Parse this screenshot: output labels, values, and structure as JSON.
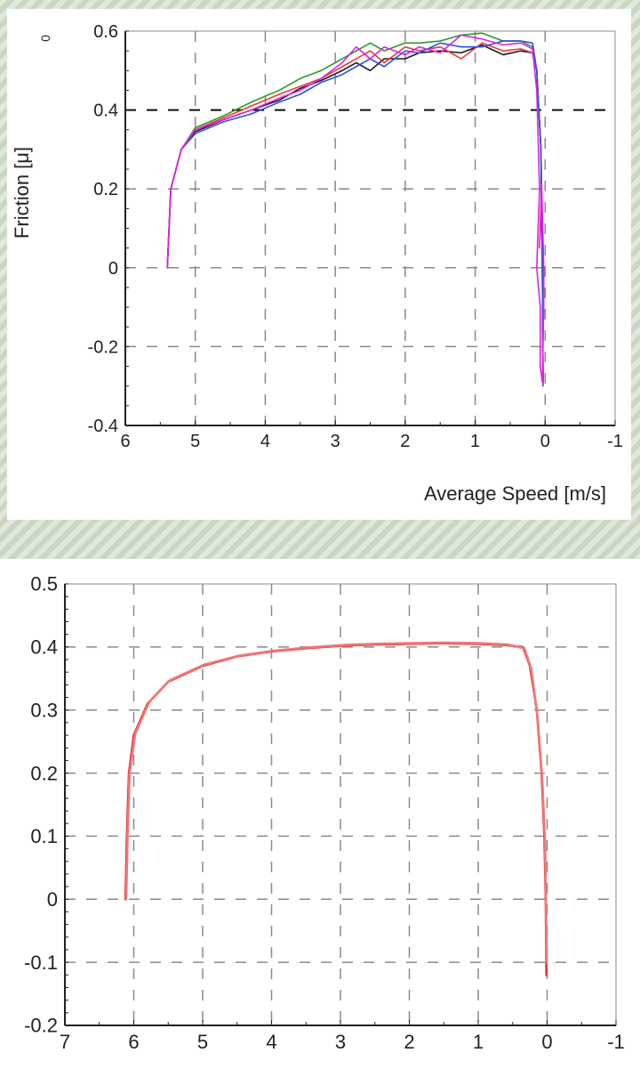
{
  "chart_data": [
    {
      "type": "line",
      "title": "",
      "xlabel": "Average Speed [m/s]",
      "ylabel": "Friction [μ]",
      "corner_label": "0",
      "xlim": [
        6,
        -1
      ],
      "ylim": [
        -0.4,
        0.6
      ],
      "x_ticks": [
        "6",
        "5",
        "4",
        "3",
        "2",
        "1",
        "0",
        "-1"
      ],
      "y_ticks": [
        "0.6",
        "0.4",
        "0.2",
        "0",
        "-0.2",
        "-0.4"
      ],
      "grid": true,
      "series": [
        {
          "color": "#1a1a1a",
          "points": [
            [
              5.4,
              0.0
            ],
            [
              5.35,
              0.2
            ],
            [
              5.2,
              0.3
            ],
            [
              5.0,
              0.345
            ],
            [
              4.6,
              0.375
            ],
            [
              4.2,
              0.4
            ],
            [
              3.8,
              0.425
            ],
            [
              3.5,
              0.455
            ],
            [
              3.2,
              0.475
            ],
            [
              2.9,
              0.5
            ],
            [
              2.7,
              0.52
            ],
            [
              2.5,
              0.5
            ],
            [
              2.3,
              0.53
            ],
            [
              2.0,
              0.53
            ],
            [
              1.8,
              0.545
            ],
            [
              1.5,
              0.55
            ],
            [
              1.2,
              0.545
            ],
            [
              0.9,
              0.565
            ],
            [
              0.6,
              0.54
            ],
            [
              0.35,
              0.55
            ],
            [
              0.18,
              0.545
            ],
            [
              0.12,
              0.5
            ],
            [
              0.06,
              0.3
            ],
            [
              0.04,
              0.0
            ],
            [
              0.03,
              -0.28
            ]
          ]
        },
        {
          "color": "#2a9a2a",
          "points": [
            [
              5.4,
              0.0
            ],
            [
              5.35,
              0.2
            ],
            [
              5.2,
              0.3
            ],
            [
              5.0,
              0.355
            ],
            [
              4.6,
              0.385
            ],
            [
              4.2,
              0.42
            ],
            [
              3.8,
              0.45
            ],
            [
              3.5,
              0.48
            ],
            [
              3.2,
              0.5
            ],
            [
              2.9,
              0.53
            ],
            [
              2.7,
              0.55
            ],
            [
              2.5,
              0.57
            ],
            [
              2.3,
              0.55
            ],
            [
              2.0,
              0.57
            ],
            [
              1.8,
              0.57
            ],
            [
              1.5,
              0.575
            ],
            [
              1.2,
              0.59
            ],
            [
              0.9,
              0.595
            ],
            [
              0.6,
              0.575
            ],
            [
              0.35,
              0.575
            ],
            [
              0.18,
              0.56
            ],
            [
              0.12,
              0.5
            ],
            [
              0.06,
              0.3
            ],
            [
              0.04,
              0.0
            ],
            [
              0.03,
              -0.29
            ]
          ]
        },
        {
          "color": "#ee3a3a",
          "points": [
            [
              5.4,
              0.0
            ],
            [
              5.35,
              0.2
            ],
            [
              5.2,
              0.3
            ],
            [
              5.0,
              0.35
            ],
            [
              4.6,
              0.38
            ],
            [
              4.2,
              0.41
            ],
            [
              3.8,
              0.44
            ],
            [
              3.5,
              0.46
            ],
            [
              3.2,
              0.48
            ],
            [
              2.9,
              0.51
            ],
            [
              2.7,
              0.53
            ],
            [
              2.5,
              0.55
            ],
            [
              2.3,
              0.52
            ],
            [
              2.0,
              0.56
            ],
            [
              1.8,
              0.55
            ],
            [
              1.5,
              0.56
            ],
            [
              1.2,
              0.53
            ],
            [
              0.9,
              0.57
            ],
            [
              0.6,
              0.55
            ],
            [
              0.35,
              0.555
            ],
            [
              0.18,
              0.545
            ],
            [
              0.12,
              0.5
            ],
            [
              0.06,
              0.3
            ],
            [
              0.04,
              0.0
            ],
            [
              0.03,
              -0.29
            ]
          ]
        },
        {
          "color": "#3050e0",
          "points": [
            [
              5.4,
              0.0
            ],
            [
              5.35,
              0.2
            ],
            [
              5.2,
              0.3
            ],
            [
              5.0,
              0.34
            ],
            [
              4.6,
              0.37
            ],
            [
              4.2,
              0.39
            ],
            [
              3.8,
              0.42
            ],
            [
              3.5,
              0.44
            ],
            [
              3.2,
              0.47
            ],
            [
              2.9,
              0.49
            ],
            [
              2.7,
              0.51
            ],
            [
              2.5,
              0.53
            ],
            [
              2.3,
              0.51
            ],
            [
              2.0,
              0.55
            ],
            [
              1.8,
              0.545
            ],
            [
              1.5,
              0.57
            ],
            [
              1.2,
              0.56
            ],
            [
              0.9,
              0.56
            ],
            [
              0.6,
              0.575
            ],
            [
              0.35,
              0.575
            ],
            [
              0.18,
              0.57
            ],
            [
              0.12,
              0.5
            ],
            [
              0.06,
              0.3
            ],
            [
              0.04,
              0.0
            ],
            [
              0.03,
              -0.3
            ]
          ]
        },
        {
          "color": "#e020e0",
          "points": [
            [
              5.4,
              0.0
            ],
            [
              5.35,
              0.2
            ],
            [
              5.2,
              0.3
            ],
            [
              5.0,
              0.35
            ],
            [
              4.6,
              0.375
            ],
            [
              4.2,
              0.4
            ],
            [
              3.8,
              0.43
            ],
            [
              3.5,
              0.45
            ],
            [
              3.2,
              0.48
            ],
            [
              2.9,
              0.52
            ],
            [
              2.7,
              0.56
            ],
            [
              2.5,
              0.53
            ],
            [
              2.3,
              0.56
            ],
            [
              2.0,
              0.54
            ],
            [
              1.8,
              0.56
            ],
            [
              1.5,
              0.545
            ],
            [
              1.2,
              0.59
            ],
            [
              0.9,
              0.58
            ],
            [
              0.6,
              0.565
            ],
            [
              0.35,
              0.57
            ],
            [
              0.18,
              0.555
            ],
            [
              0.12,
              0.45
            ],
            [
              0.08,
              0.2
            ],
            [
              0.12,
              0.0
            ],
            [
              0.07,
              -0.1
            ],
            [
              0.07,
              -0.25
            ],
            [
              0.04,
              -0.29
            ],
            [
              0.02,
              -0.1
            ],
            [
              0.02,
              0.0
            ],
            [
              0.05,
              0.21
            ],
            [
              0.08,
              0.05
            ]
          ]
        }
      ]
    },
    {
      "type": "line",
      "title": "",
      "xlabel": "",
      "ylabel": "",
      "xlim": [
        7,
        -1
      ],
      "ylim": [
        -0.2,
        0.5
      ],
      "x_ticks": [
        "7",
        "6",
        "5",
        "4",
        "3",
        "2",
        "1",
        "0",
        "-1"
      ],
      "y_ticks": [
        "0.5",
        "0.4",
        "0.3",
        "0.2",
        "0.1",
        "0",
        "-0.1",
        "-0.2"
      ],
      "grid": true,
      "series": [
        {
          "color": "#ee2a2a",
          "points": [
            [
              6.12,
              0.0
            ],
            [
              6.1,
              0.1
            ],
            [
              6.07,
              0.2
            ],
            [
              6.0,
              0.26
            ],
            [
              5.8,
              0.31
            ],
            [
              5.5,
              0.345
            ],
            [
              5.0,
              0.37
            ],
            [
              4.5,
              0.385
            ],
            [
              4.0,
              0.393
            ],
            [
              3.5,
              0.398
            ],
            [
              3.0,
              0.402
            ],
            [
              2.5,
              0.404
            ],
            [
              2.0,
              0.405
            ],
            [
              1.5,
              0.406
            ],
            [
              1.0,
              0.405
            ],
            [
              0.6,
              0.403
            ],
            [
              0.35,
              0.4
            ],
            [
              0.25,
              0.37
            ],
            [
              0.15,
              0.3
            ],
            [
              0.08,
              0.2
            ],
            [
              0.04,
              0.1
            ],
            [
              0.02,
              0.0
            ],
            [
              0.01,
              -0.12
            ]
          ]
        },
        {
          "color": "#f07878",
          "points": [
            [
              6.11,
              0.0
            ],
            [
              6.09,
              0.1
            ],
            [
              6.06,
              0.2
            ],
            [
              5.98,
              0.262
            ],
            [
              5.78,
              0.312
            ],
            [
              5.48,
              0.347
            ],
            [
              4.98,
              0.372
            ],
            [
              4.48,
              0.386
            ],
            [
              3.98,
              0.394
            ],
            [
              3.48,
              0.399
            ],
            [
              2.98,
              0.403
            ],
            [
              2.48,
              0.405
            ],
            [
              1.98,
              0.406
            ],
            [
              1.48,
              0.407
            ],
            [
              0.98,
              0.406
            ],
            [
              0.58,
              0.404
            ],
            [
              0.33,
              0.398
            ],
            [
              0.23,
              0.365
            ],
            [
              0.14,
              0.29
            ],
            [
              0.07,
              0.19
            ],
            [
              0.03,
              0.09
            ],
            [
              0.015,
              -0.02
            ],
            [
              0.005,
              -0.1
            ]
          ]
        }
      ]
    }
  ]
}
